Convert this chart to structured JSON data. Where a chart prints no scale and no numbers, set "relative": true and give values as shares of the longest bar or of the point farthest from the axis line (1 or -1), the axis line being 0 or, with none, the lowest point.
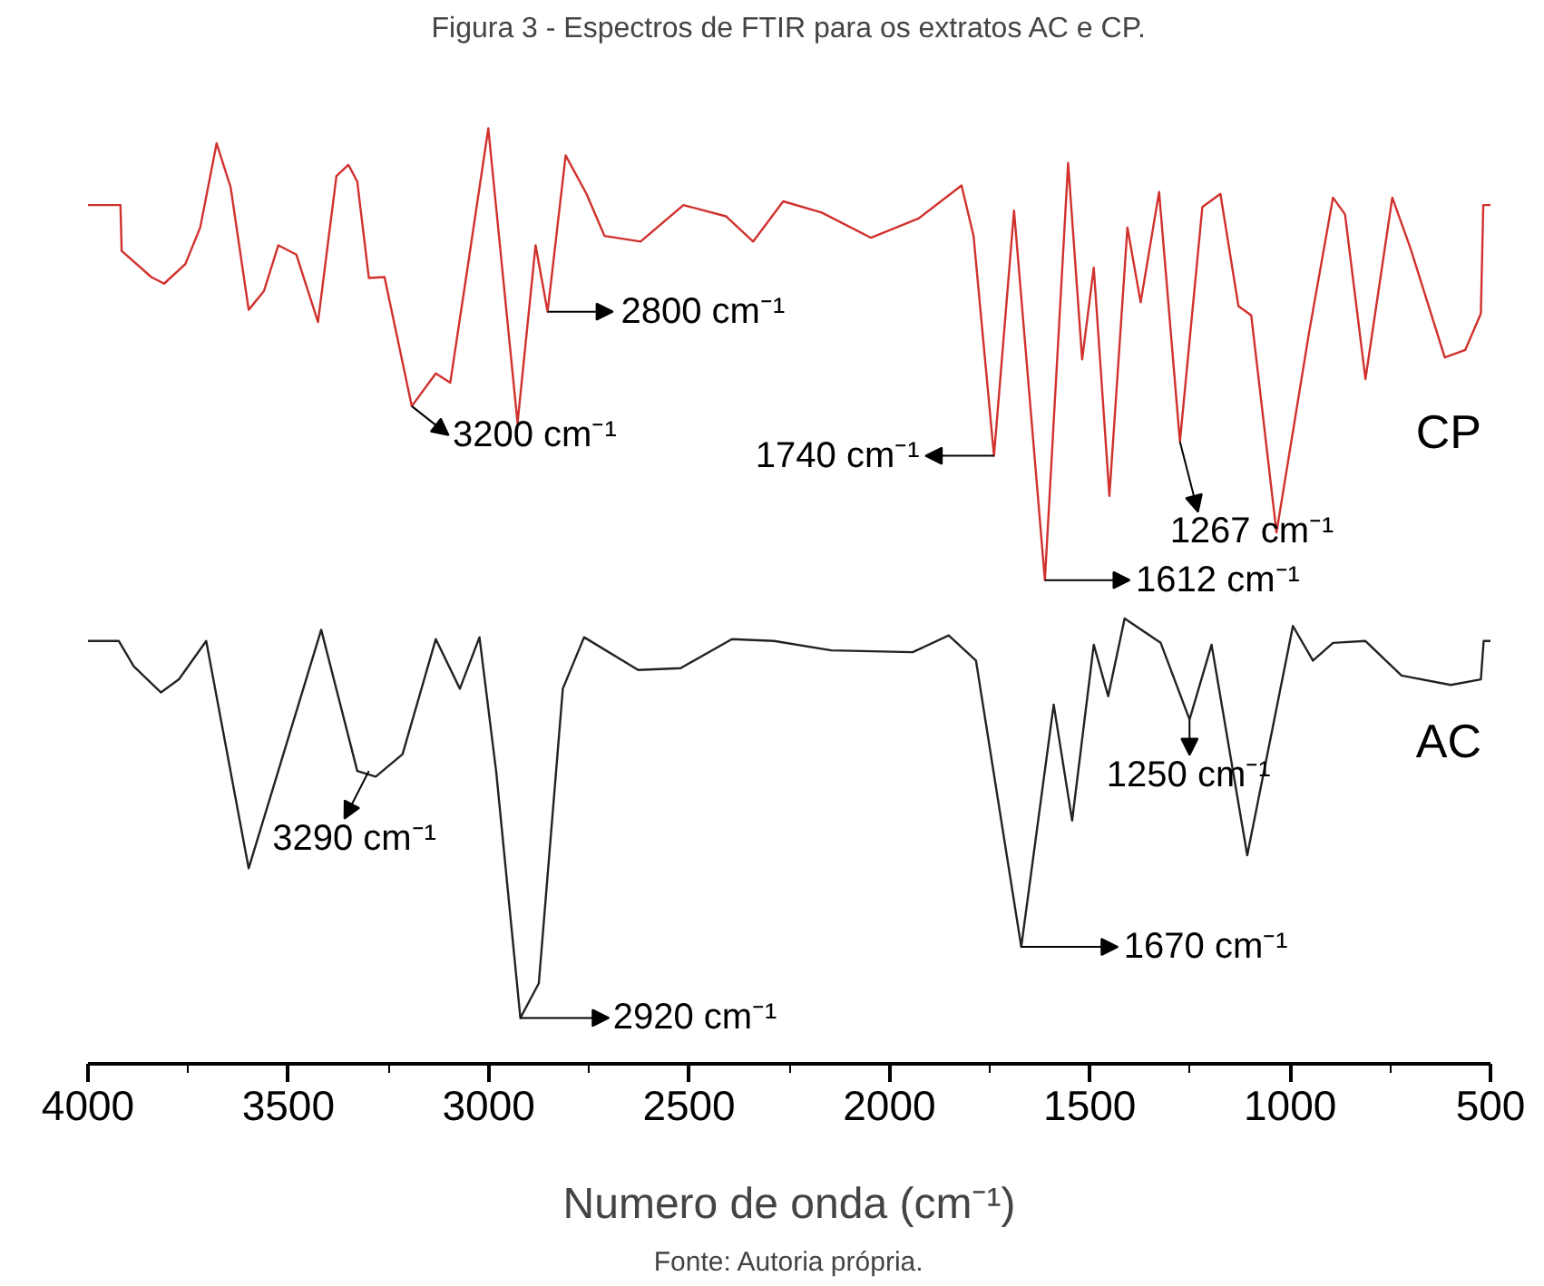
{
  "chart_data": {
    "type": "line",
    "title": "Figura 3 - Espectros de FTIR para os extratos AC e CP.",
    "xlabel": "Numero de onda (cm⁻¹)",
    "relative": true,
    "tick_labels": "x",
    "xlim": [
      4000,
      500
    ],
    "xticks": [
      4000,
      3500,
      3000,
      2500,
      2000,
      1500,
      1000,
      500
    ],
    "series": [
      {
        "name": "CP",
        "color": "#d0312d",
        "x": [
          4000,
          3919,
          3916,
          3842,
          3810,
          3757,
          3720,
          3679,
          3644,
          3599,
          3561,
          3525,
          3480,
          3426,
          3380,
          3350,
          3328,
          3299,
          3260,
          3192,
          3132,
          3096,
          3050,
          3001,
          2928,
          2883,
          2853,
          2808,
          2756,
          2711,
          2621,
          2514,
          2408,
          2340,
          2265,
          2169,
          2046,
          1926,
          1820,
          1790,
          1739,
          1689,
          1612,
          1554,
          1519,
          1490,
          1451,
          1406,
          1373,
          1327,
          1275,
          1219,
          1174,
          1129,
          1097,
          1034,
          953,
          893,
          863,
          812,
          745,
          699,
          614,
          563,
          524,
          518,
          500
        ],
        "values": [
          0.918,
          0.918,
          0.869,
          0.841,
          0.834,
          0.855,
          0.894,
          0.984,
          0.937,
          0.806,
          0.826,
          0.875,
          0.865,
          0.793,
          0.949,
          0.961,
          0.943,
          0.84,
          0.841,
          0.703,
          0.738,
          0.728,
          0.859,
          1.0,
          0.685,
          0.875,
          0.804,
          0.971,
          0.93,
          0.885,
          0.879,
          0.918,
          0.906,
          0.879,
          0.922,
          0.91,
          0.883,
          0.904,
          0.939,
          0.885,
          0.65,
          0.912,
          0.517,
          0.963,
          0.753,
          0.851,
          0.607,
          0.894,
          0.814,
          0.932,
          0.665,
          0.916,
          0.93,
          0.81,
          0.8,
          0.568,
          0.781,
          0.926,
          0.908,
          0.732,
          0.926,
          0.871,
          0.755,
          0.763,
          0.802,
          0.918,
          0.918
        ]
      },
      {
        "name": "AC",
        "color": "#222222",
        "x": [
          4000,
          3923,
          3886,
          3818,
          3773,
          3705,
          3599,
          3418,
          3328,
          3282,
          3215,
          3132,
          3072,
          3023,
          2981,
          2921,
          2875,
          2815,
          2762,
          2627,
          2521,
          2393,
          2288,
          2145,
          1942,
          1852,
          1784,
          1671,
          1590,
          1544,
          1490,
          1454,
          1413,
          1323,
          1251,
          1196,
          1107,
          993,
          943,
          893,
          812,
          722,
          599,
          524,
          517,
          500
        ],
        "values": [
          0.452,
          0.452,
          0.425,
          0.397,
          0.411,
          0.452,
          0.209,
          0.464,
          0.313,
          0.307,
          0.331,
          0.454,
          0.401,
          0.456,
          0.311,
          0.049,
          0.086,
          0.401,
          0.456,
          0.421,
          0.423,
          0.454,
          0.452,
          0.442,
          0.44,
          0.458,
          0.431,
          0.125,
          0.384,
          0.26,
          0.448,
          0.393,
          0.476,
          0.45,
          0.368,
          0.448,
          0.223,
          0.468,
          0.431,
          0.45,
          0.452,
          0.415,
          0.405,
          0.411,
          0.452,
          0.452
        ]
      }
    ],
    "annotations": [
      {
        "text": "3200 cm⁻¹",
        "x": 3192,
        "y": 0.703
      },
      {
        "text": "2800 cm⁻¹",
        "x": 2853,
        "y": 0.804
      },
      {
        "text": "1740 cm⁻¹",
        "x": 1739,
        "y": 0.65
      },
      {
        "text": "1612 cm⁻¹",
        "x": 1612,
        "y": 0.517
      },
      {
        "text": "1267 cm⁻¹",
        "x": 1275,
        "y": 0.665
      },
      {
        "text": "3290 cm⁻¹",
        "x": 3299,
        "y": 0.313
      },
      {
        "text": "2920 cm⁻¹",
        "x": 2921,
        "y": 0.049
      },
      {
        "text": "1670 cm⁻¹",
        "x": 1671,
        "y": 0.125
      },
      {
        "text": "1250 cm⁻¹",
        "x": 1251,
        "y": 0.368
      },
      "Fonte: Autoria própria."
    ]
  }
}
